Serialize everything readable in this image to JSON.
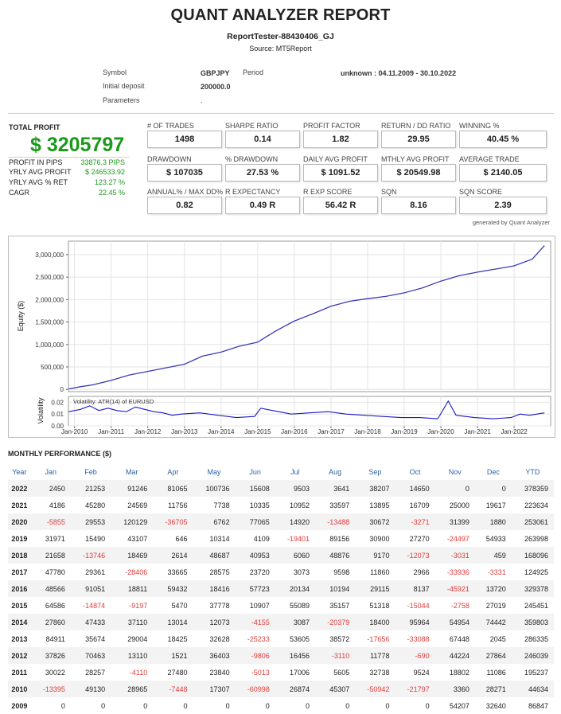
{
  "report": {
    "title": "QUANT ANALYZER REPORT",
    "subtitle": "ReportTester-88430406_GJ",
    "source": "Source: MT5Report"
  },
  "info": {
    "symbol_label": "Symbol",
    "symbol_value": "GBPJPY",
    "period_label": "Period",
    "period_value": "unknown : 04.11.2009 - 30.10.2022",
    "deposit_label": "Initial deposit",
    "deposit_value": "200000.0",
    "params_label": "Parameters",
    "params_value": "."
  },
  "total_profit": {
    "label": "TOTAL PROFIT",
    "value": "$ 3205797",
    "rows": [
      {
        "label": "PROFIT IN PIPS",
        "value": "33876.3 PIPS"
      },
      {
        "label": "YRLY AVG PROFIT",
        "value": "$ 246533.92"
      },
      {
        "label": "YRLY AVG % RET",
        "value": "123.27 %"
      },
      {
        "label": "CAGR",
        "value": "22.45 %"
      }
    ]
  },
  "metrics": [
    [
      {
        "label": "# OF TRADES",
        "value": "1498"
      },
      {
        "label": "SHARPE RATIO",
        "value": "0.14"
      },
      {
        "label": "PROFIT FACTOR",
        "value": "1.82"
      },
      {
        "label": "RETURN / DD RATIO",
        "value": "29.95"
      },
      {
        "label": "WINNING %",
        "value": "40.45 %"
      }
    ],
    [
      {
        "label": "DRAWDOWN",
        "value": "$ 107035"
      },
      {
        "label": "% DRAWDOWN",
        "value": "27.53 %"
      },
      {
        "label": "DAILY AVG PROFIT",
        "value": "$ 1091.52"
      },
      {
        "label": "MTHLY AVG PROFIT",
        "value": "$ 20549.98"
      },
      {
        "label": "AVERAGE TRADE",
        "value": "$ 2140.05"
      }
    ],
    [
      {
        "label": "ANNUAL% / MAX DD%",
        "value": "0.82"
      },
      {
        "label": "R EXPECTANCY",
        "value": "0.49 R"
      },
      {
        "label": "R EXP SCORE",
        "value": "56.42 R"
      },
      {
        "label": "SQN",
        "value": "8.16"
      },
      {
        "label": "SQN SCORE",
        "value": "2.39"
      }
    ]
  ],
  "generated_by": "generated by Quant Analyzer",
  "chart_data": [
    {
      "type": "line",
      "ylabel": "Equity ($)",
      "xlabel": "",
      "yticks": [
        0,
        500000,
        1000000,
        1500000,
        2000000,
        2500000,
        3000000
      ],
      "ytick_labels": [
        "0",
        "500,000",
        "1,000,000",
        "1,500,000",
        "2,000,000",
        "2,500,000",
        "3,000,000"
      ],
      "ylim": [
        -50000,
        3300000
      ],
      "xlim": [
        "2009-11-01",
        "2022-12-31"
      ],
      "color": "#3a3ab8",
      "grid": true,
      "series": [
        {
          "x": [
            "2009-11-04",
            "2010-03-01",
            "2010-07-01",
            "2010-12-31",
            "2011-06-30",
            "2011-12-31",
            "2012-06-30",
            "2012-12-31",
            "2013-06-30",
            "2013-12-31",
            "2014-06-30",
            "2014-12-31",
            "2015-06-30",
            "2015-12-31",
            "2016-06-30",
            "2016-12-31",
            "2017-06-30",
            "2017-12-31",
            "2018-06-30",
            "2018-12-31",
            "2019-06-30",
            "2019-12-31",
            "2020-06-30",
            "2020-12-31",
            "2021-06-30",
            "2021-12-31",
            "2022-06-30",
            "2022-10-30"
          ],
          "values": [
            10000,
            60000,
            100000,
            200000,
            320000,
            400000,
            480000,
            560000,
            740000,
            830000,
            960000,
            1050000,
            1300000,
            1520000,
            1680000,
            1850000,
            1960000,
            2020000,
            2070000,
            2150000,
            2260000,
            2410000,
            2530000,
            2610000,
            2680000,
            2750000,
            2900000,
            3200000
          ]
        }
      ]
    },
    {
      "type": "line",
      "ylabel": "Volatility",
      "annotation": "Volatility: ATR(14) of EURUSD",
      "yticks": [
        0,
        0.01,
        0.02
      ],
      "ytick_labels": [
        "0.00",
        "0.01",
        "0.02"
      ],
      "ylim": [
        0,
        0.025
      ],
      "xticks": [
        "2010-01-01",
        "2011-01-01",
        "2012-01-01",
        "2013-01-01",
        "2014-01-01",
        "2015-01-01",
        "2016-01-01",
        "2017-01-01",
        "2018-01-01",
        "2019-01-01",
        "2020-01-01",
        "2021-01-01",
        "2022-01-01"
      ],
      "xtick_labels": [
        "Jan-2010",
        "Jan-2011",
        "Jan-2012",
        "Jan-2013",
        "Jan-2014",
        "Jan-2015",
        "Jan-2016",
        "Jan-2017",
        "Jan-2018",
        "Jan-2019",
        "Jan-2020",
        "Jan-2021",
        "Jan-2022"
      ],
      "xlim": [
        "2009-11-01",
        "2022-12-31"
      ],
      "color": "#1a1ac8",
      "grid": true,
      "series": [
        {
          "x": [
            "2009-11-04",
            "2010-03-01",
            "2010-06-01",
            "2010-09-01",
            "2010-12-01",
            "2011-03-01",
            "2011-06-01",
            "2011-09-01",
            "2011-12-01",
            "2012-03-01",
            "2012-06-01",
            "2012-09-01",
            "2012-12-01",
            "2013-06-01",
            "2013-12-01",
            "2014-06-01",
            "2014-12-01",
            "2015-02-01",
            "2015-06-01",
            "2015-12-01",
            "2016-06-01",
            "2016-12-01",
            "2017-06-01",
            "2017-12-01",
            "2018-06-01",
            "2018-12-01",
            "2019-06-01",
            "2019-12-01",
            "2020-03-15",
            "2020-06-01",
            "2020-12-01",
            "2021-06-01",
            "2021-12-01",
            "2022-03-01",
            "2022-06-01",
            "2022-10-30"
          ],
          "values": [
            0.012,
            0.014,
            0.017,
            0.013,
            0.015,
            0.013,
            0.012,
            0.016,
            0.014,
            0.012,
            0.011,
            0.009,
            0.01,
            0.011,
            0.009,
            0.007,
            0.008,
            0.015,
            0.013,
            0.01,
            0.011,
            0.012,
            0.01,
            0.009,
            0.008,
            0.007,
            0.007,
            0.006,
            0.021,
            0.009,
            0.007,
            0.006,
            0.007,
            0.01,
            0.009,
            0.011
          ]
        }
      ]
    }
  ],
  "monthly": {
    "title": "MONTHLY PERFORMANCE ($)",
    "headers": [
      "Year",
      "Jan",
      "Feb",
      "Mar",
      "Apr",
      "May",
      "Jun",
      "Jul",
      "Aug",
      "Sep",
      "Oct",
      "Nov",
      "Dec",
      "YTD"
    ],
    "rows": [
      [
        "2022",
        "2450",
        "21253",
        "91246",
        "81065",
        "100736",
        "15608",
        "9503",
        "3641",
        "38207",
        "14650",
        "0",
        "0",
        "378359"
      ],
      [
        "2021",
        "4186",
        "45280",
        "24569",
        "11756",
        "7738",
        "10335",
        "10952",
        "33597",
        "13895",
        "16709",
        "25000",
        "19617",
        "223634"
      ],
      [
        "2020",
        "-5855",
        "29553",
        "120129",
        "-36705",
        "6762",
        "77065",
        "14920",
        "-13488",
        "30672",
        "-3271",
        "31399",
        "1880",
        "253061"
      ],
      [
        "2019",
        "31971",
        "15490",
        "43107",
        "646",
        "10314",
        "4109",
        "-19401",
        "89156",
        "30900",
        "27270",
        "-24497",
        "54933",
        "263998"
      ],
      [
        "2018",
        "21658",
        "-13746",
        "18469",
        "2614",
        "48687",
        "40953",
        "6060",
        "48876",
        "9170",
        "-12073",
        "-3031",
        "459",
        "168096"
      ],
      [
        "2017",
        "47780",
        "29361",
        "-28406",
        "33665",
        "28575",
        "23720",
        "3073",
        "9598",
        "11860",
        "2966",
        "-33936",
        "-3331",
        "124925"
      ],
      [
        "2016",
        "48566",
        "91051",
        "18811",
        "59432",
        "18416",
        "57723",
        "20134",
        "10194",
        "29115",
        "8137",
        "-45921",
        "13720",
        "329378"
      ],
      [
        "2015",
        "64586",
        "-14874",
        "-9197",
        "5470",
        "37778",
        "10907",
        "55089",
        "35157",
        "51318",
        "-15044",
        "-2758",
        "27019",
        "245451"
      ],
      [
        "2014",
        "27860",
        "47433",
        "37110",
        "13014",
        "12073",
        "-4155",
        "3087",
        "-20379",
        "18400",
        "95964",
        "54954",
        "74442",
        "359803"
      ],
      [
        "2013",
        "84911",
        "35674",
        "29004",
        "18425",
        "32628",
        "-25233",
        "53605",
        "38572",
        "-17656",
        "-33088",
        "67448",
        "2045",
        "286335"
      ],
      [
        "2012",
        "37826",
        "70463",
        "13110",
        "1521",
        "36403",
        "-9806",
        "16456",
        "-3110",
        "11778",
        "-690",
        "44224",
        "27864",
        "246039"
      ],
      [
        "2011",
        "30022",
        "28257",
        "-4110",
        "27480",
        "23840",
        "-5013",
        "17006",
        "5605",
        "32738",
        "9524",
        "18802",
        "11086",
        "195237"
      ],
      [
        "2010",
        "-13395",
        "49130",
        "28965",
        "-7448",
        "17307",
        "-60998",
        "26874",
        "45307",
        "-50942",
        "-21797",
        "3360",
        "28271",
        "44634"
      ],
      [
        "2009",
        "0",
        "0",
        "0",
        "0",
        "0",
        "0",
        "0",
        "0",
        "0",
        "0",
        "54207",
        "32640",
        "86847"
      ]
    ]
  }
}
